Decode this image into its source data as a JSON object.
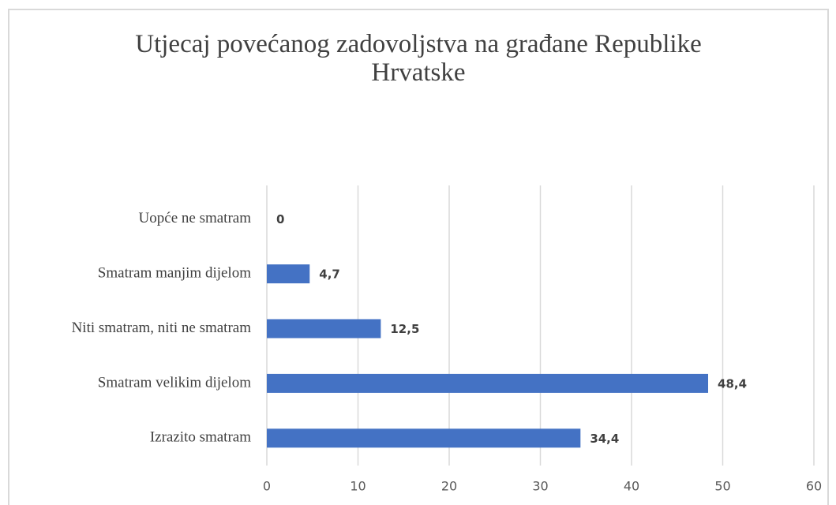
{
  "chart_data": {
    "type": "barh",
    "title": "Utjecaj povećanog zadovoljstva na građane Republike Hrvatske",
    "categories": [
      "Uopće ne smatram",
      "Smatram manjim dijelom",
      "Niti smatram, niti ne smatram",
      "Smatram velikim dijelom",
      "Izrazito smatram"
    ],
    "values": [
      0,
      4.7,
      12.5,
      48.4,
      34.4
    ],
    "value_labels": [
      "0",
      "4,7",
      "12,5",
      "48,4",
      "34,4"
    ],
    "color": "#4472c4",
    "xlim": [
      0,
      60
    ],
    "xticks": [
      0,
      10,
      20,
      30,
      40,
      50,
      60
    ],
    "grid": true
  }
}
